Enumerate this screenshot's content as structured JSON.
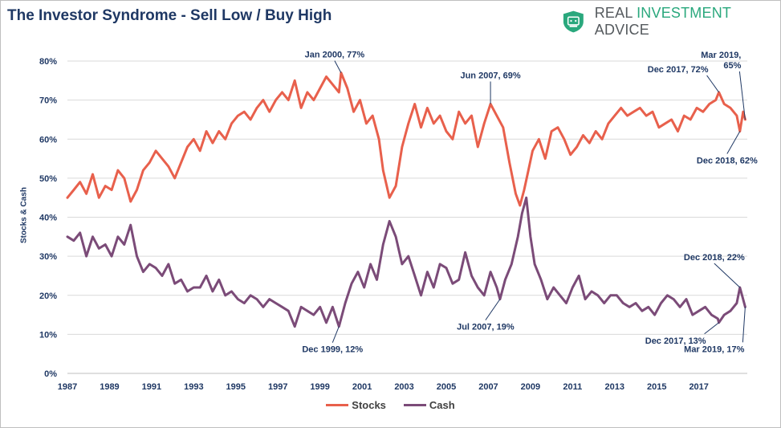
{
  "chart_data": {
    "type": "line",
    "title": "The Investor Syndrome - Sell Low / Buy High",
    "ylabel": "Stocks & Cash",
    "xlabel": "",
    "ylim": [
      0,
      80
    ],
    "xlim": [
      1987,
      2019.3
    ],
    "y_ticks": [
      0,
      10,
      20,
      30,
      40,
      50,
      60,
      70,
      80
    ],
    "y_tick_labels": [
      "0%",
      "10%",
      "20%",
      "30%",
      "40%",
      "50%",
      "60%",
      "70%",
      "80%"
    ],
    "x_ticks": [
      1987,
      1989,
      1991,
      1993,
      1995,
      1997,
      1999,
      2001,
      2003,
      2005,
      2007,
      2009,
      2011,
      2013,
      2015,
      2017
    ],
    "x_tick_labels": [
      "1987",
      "1989",
      "1991",
      "1993",
      "1995",
      "1997",
      "1999",
      "2001",
      "2003",
      "2005",
      "2007",
      "2009",
      "2011",
      "2013",
      "2015",
      "2017"
    ],
    "grid": true,
    "legend_position": "bottom",
    "series": [
      {
        "name": "Stocks",
        "color": "#e8604c",
        "x": [
          1987.0,
          1987.3,
          1987.6,
          1987.9,
          1988.2,
          1988.5,
          1988.8,
          1989.1,
          1989.4,
          1989.7,
          1990.0,
          1990.3,
          1990.6,
          1990.9,
          1991.2,
          1991.5,
          1991.8,
          1992.1,
          1992.4,
          1992.7,
          1993.0,
          1993.3,
          1993.6,
          1993.9,
          1994.2,
          1994.5,
          1994.8,
          1995.1,
          1995.4,
          1995.7,
          1996.0,
          1996.3,
          1996.6,
          1996.9,
          1997.2,
          1997.5,
          1997.8,
          1998.1,
          1998.4,
          1998.7,
          1999.0,
          1999.3,
          1999.6,
          1999.9,
          2000.0,
          2000.3,
          2000.6,
          2000.9,
          2001.2,
          2001.5,
          2001.8,
          2002.0,
          2002.3,
          2002.6,
          2002.9,
          2003.2,
          2003.5,
          2003.8,
          2004.1,
          2004.4,
          2004.7,
          2005.0,
          2005.3,
          2005.6,
          2005.9,
          2006.2,
          2006.5,
          2006.8,
          2007.1,
          2007.4,
          2007.7,
          2008.0,
          2008.3,
          2008.5,
          2008.7,
          2008.9,
          2009.1,
          2009.4,
          2009.7,
          2010.0,
          2010.3,
          2010.6,
          2010.9,
          2011.2,
          2011.5,
          2011.8,
          2012.1,
          2012.4,
          2012.7,
          2013.0,
          2013.3,
          2013.6,
          2013.9,
          2014.2,
          2014.5,
          2014.8,
          2015.1,
          2015.4,
          2015.7,
          2016.0,
          2016.3,
          2016.6,
          2016.9,
          2017.2,
          2017.5,
          2017.8,
          2017.95,
          2018.2,
          2018.5,
          2018.8,
          2018.95,
          2019.1,
          2019.2
        ],
        "values": [
          45,
          47,
          49,
          46,
          51,
          45,
          48,
          47,
          52,
          50,
          44,
          47,
          52,
          54,
          57,
          55,
          53,
          50,
          54,
          58,
          60,
          57,
          62,
          59,
          62,
          60,
          64,
          66,
          67,
          65,
          68,
          70,
          67,
          70,
          72,
          70,
          75,
          68,
          72,
          70,
          73,
          76,
          74,
          72,
          77,
          73,
          67,
          70,
          64,
          66,
          60,
          52,
          45,
          48,
          58,
          64,
          69,
          63,
          68,
          64,
          66,
          62,
          60,
          67,
          64,
          66,
          58,
          64,
          69,
          66,
          63,
          54,
          46,
          43,
          47,
          52,
          57,
          60,
          55,
          62,
          63,
          60,
          56,
          58,
          61,
          59,
          62,
          60,
          64,
          66,
          68,
          66,
          67,
          68,
          66,
          67,
          63,
          64,
          65,
          62,
          66,
          65,
          68,
          67,
          69,
          70,
          72,
          69,
          68,
          66,
          62,
          67,
          65
        ]
      },
      {
        "name": "Cash",
        "color": "#7b4b78",
        "x": [
          1987.0,
          1987.3,
          1987.6,
          1987.9,
          1988.2,
          1988.5,
          1988.8,
          1989.1,
          1989.4,
          1989.7,
          1990.0,
          1990.3,
          1990.6,
          1990.9,
          1991.2,
          1991.5,
          1991.8,
          1992.1,
          1992.4,
          1992.7,
          1993.0,
          1993.3,
          1993.6,
          1993.9,
          1994.2,
          1994.5,
          1994.8,
          1995.1,
          1995.4,
          1995.7,
          1996.0,
          1996.3,
          1996.6,
          1996.9,
          1997.2,
          1997.5,
          1997.8,
          1998.1,
          1998.4,
          1998.7,
          1999.0,
          1999.3,
          1999.6,
          1999.9,
          2000.2,
          2000.5,
          2000.8,
          2001.1,
          2001.4,
          2001.7,
          2002.0,
          2002.3,
          2002.6,
          2002.9,
          2003.2,
          2003.5,
          2003.8,
          2004.1,
          2004.4,
          2004.7,
          2005.0,
          2005.3,
          2005.6,
          2005.9,
          2006.2,
          2006.5,
          2006.8,
          2007.1,
          2007.4,
          2007.55,
          2007.8,
          2008.1,
          2008.4,
          2008.6,
          2008.8,
          2009.0,
          2009.2,
          2009.5,
          2009.8,
          2010.1,
          2010.4,
          2010.7,
          2011.0,
          2011.3,
          2011.6,
          2011.9,
          2012.2,
          2012.5,
          2012.8,
          2013.1,
          2013.4,
          2013.7,
          2014.0,
          2014.3,
          2014.6,
          2014.9,
          2015.2,
          2015.5,
          2015.8,
          2016.1,
          2016.4,
          2016.7,
          2017.0,
          2017.3,
          2017.6,
          2017.9,
          2017.95,
          2018.2,
          2018.5,
          2018.8,
          2018.95,
          2019.1,
          2019.2
        ],
        "values": [
          35,
          34,
          36,
          30,
          35,
          32,
          33,
          30,
          35,
          33,
          38,
          30,
          26,
          28,
          27,
          25,
          28,
          23,
          24,
          21,
          22,
          22,
          25,
          21,
          24,
          20,
          21,
          19,
          18,
          20,
          19,
          17,
          19,
          18,
          17,
          16,
          12,
          17,
          16,
          15,
          17,
          13,
          17,
          12,
          18,
          23,
          26,
          22,
          28,
          24,
          33,
          39,
          35,
          28,
          30,
          25,
          20,
          26,
          22,
          28,
          27,
          23,
          24,
          31,
          25,
          22,
          20,
          26,
          22,
          19,
          24,
          28,
          35,
          41,
          45,
          35,
          28,
          24,
          19,
          22,
          20,
          18,
          22,
          25,
          19,
          21,
          20,
          18,
          20,
          20,
          18,
          17,
          18,
          16,
          17,
          15,
          18,
          20,
          19,
          17,
          19,
          15,
          16,
          17,
          15,
          14,
          13,
          15,
          16,
          18,
          22,
          19,
          17
        ]
      }
    ],
    "annotations": [
      {
        "label": "Jan 2000, 77%",
        "series": "Stocks",
        "x": 2000.0,
        "y": 77
      },
      {
        "label": "Jun 2007, 69%",
        "series": "Stocks",
        "x": 2007.1,
        "y": 69
      },
      {
        "label": "Dec 2017, 72%",
        "series": "Stocks",
        "x": 2017.95,
        "y": 72
      },
      {
        "label": "Mar 2019,\n65%",
        "series": "Stocks",
        "x": 2019.2,
        "y": 65
      },
      {
        "label": "Dec 2018, 62%",
        "series": "Stocks",
        "x": 2018.95,
        "y": 62
      },
      {
        "label": "Dec 1999, 12%",
        "series": "Cash",
        "x": 1999.9,
        "y": 12
      },
      {
        "label": "Jul 2007, 19%",
        "series": "Cash",
        "x": 2007.55,
        "y": 19
      },
      {
        "label": "Dec 2018, 22%",
        "series": "Cash",
        "x": 2018.95,
        "y": 22
      },
      {
        "label": "Dec 2017, 13%",
        "series": "Cash",
        "x": 2017.95,
        "y": 13
      },
      {
        "label": "Mar 2019, 17%",
        "series": "Cash",
        "x": 2019.2,
        "y": 17
      }
    ]
  },
  "brand": {
    "name_part1": "REAL ",
    "name_part2": "INVESTMENT",
    "name_part3": " ADVICE",
    "accent_color": "#2aa87d"
  }
}
